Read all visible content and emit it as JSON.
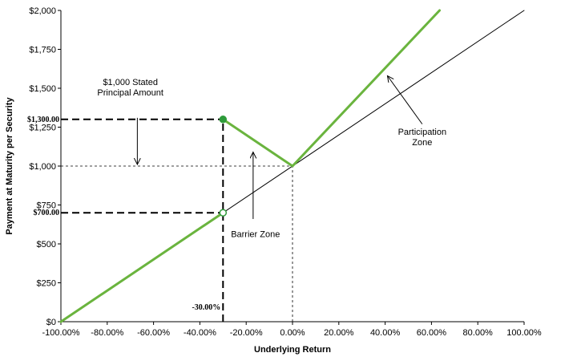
{
  "chart_data": {
    "type": "line",
    "xlabel": "Underlying Return",
    "ylabel": "Payment at Maturity per Security",
    "xlim": [
      -100,
      100
    ],
    "ylim": [
      0,
      2000
    ],
    "x_ticks": [
      -100,
      -80,
      -60,
      -40,
      -20,
      0,
      20,
      40,
      60,
      80,
      100
    ],
    "x_tick_labels": [
      "-100.00%",
      "-80.00%",
      "-60.00%",
      "-40.00%",
      "-20.00%",
      "0.00%",
      "20.00%",
      "40.00%",
      "60.00%",
      "80.00%",
      "100.00%"
    ],
    "y_ticks": [
      0,
      250,
      500,
      750,
      1000,
      1250,
      1500,
      1750,
      2000
    ],
    "y_tick_labels": [
      "$0",
      "$250",
      "$500",
      "$750",
      "$1,000",
      "$1,250",
      "$1,500",
      "$1,750",
      "$2,000"
    ],
    "grid": false,
    "colors": {
      "payoff": "#6ab43e",
      "underlying": "#000000",
      "dashed": "#000000",
      "marker_fill": "#2e9b3a"
    },
    "series": [
      {
        "role": "underlying",
        "x": [
          -100,
          100
        ],
        "y": [
          0,
          2000
        ]
      },
      {
        "role": "payoff-low",
        "x": [
          -100,
          -30
        ],
        "y": [
          0,
          700
        ]
      },
      {
        "role": "payoff-high",
        "x": [
          -30,
          0,
          63.5
        ],
        "y": [
          1300,
          1000,
          2000
        ]
      }
    ],
    "markers": [
      {
        "x": -30,
        "y": 1300,
        "filled": true
      },
      {
        "x": -30,
        "y": 700,
        "filled": false
      }
    ],
    "reference_lines": [
      {
        "style": "heavy-dash",
        "from": [
          -100,
          1300
        ],
        "to": [
          -30,
          1300
        ]
      },
      {
        "style": "heavy-dash",
        "from": [
          -100,
          700
        ],
        "to": [
          -30,
          700
        ]
      },
      {
        "style": "heavy-dash",
        "from": [
          -30,
          0
        ],
        "to": [
          -30,
          1300
        ]
      },
      {
        "style": "light-dash",
        "from": [
          -100,
          1000
        ],
        "to": [
          0,
          1000
        ]
      },
      {
        "style": "light-dash",
        "from": [
          0,
          0
        ],
        "to": [
          0,
          1000
        ]
      }
    ],
    "point_labels": [
      {
        "text": "$1,300.00",
        "x": -100,
        "y": 1300
      },
      {
        "text": "$700.00",
        "x": -100,
        "y": 700
      },
      {
        "text": "-30.00%",
        "x": -30,
        "y": 0
      }
    ],
    "annotations": [
      {
        "lines": [
          "$1,000 Stated",
          "Principal Amount"
        ],
        "text_at": [
          -70,
          1520
        ],
        "arrow_from": [
          -67,
          1310
        ],
        "arrow_to": [
          -67,
          1010
        ]
      },
      {
        "lines": [
          "Barrier Zone"
        ],
        "text_at": [
          -16,
          545
        ],
        "arrow_from": [
          -17,
          660
        ],
        "arrow_to": [
          -17,
          1090
        ]
      },
      {
        "lines": [
          "Participation",
          "Zone"
        ],
        "text_at": [
          56,
          1200
        ],
        "arrow_from": [
          56,
          1270
        ],
        "arrow_to": [
          41,
          1580
        ]
      }
    ]
  }
}
